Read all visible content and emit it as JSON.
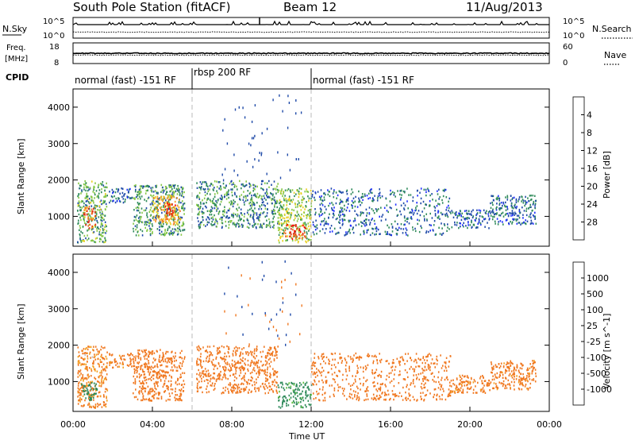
{
  "header": {
    "station": "South Pole Station (fitACF)",
    "beam": "Beam 12",
    "date": "11/Aug/2013"
  },
  "noise_panel": {
    "left_label": "N.Sky",
    "right_label": "N.Search",
    "left_ticks": [
      "10^5",
      "10^0"
    ],
    "right_ticks": [
      "10^5",
      "10^0"
    ]
  },
  "freq_panel": {
    "left_label_line1": "Freq.",
    "left_label_line2": "[MHz]",
    "right_label": "Nave",
    "left_ticks": [
      "18",
      "8"
    ],
    "right_ticks": [
      "60",
      "0"
    ]
  },
  "cpid": {
    "label": "CPID",
    "segments": [
      {
        "start_h": 0,
        "end_h": 6,
        "name": "normal (fast) -151 RF"
      },
      {
        "start_h": 6,
        "end_h": 12,
        "name": "rbsp 200 RF"
      },
      {
        "start_h": 12,
        "end_h": 24,
        "name": "normal (fast) -151 RF"
      }
    ]
  },
  "x_axis": {
    "label": "Time UT",
    "ticks": [
      "00:00",
      "04:00",
      "08:00",
      "12:00",
      "16:00",
      "20:00",
      "00:00"
    ],
    "range_hours": [
      0,
      24
    ]
  },
  "chart_data": [
    {
      "type": "heatmap",
      "ylabel": "Slant Range [km]",
      "ylim": [
        180,
        4500
      ],
      "yticks": [
        "1000",
        "2000",
        "3000",
        "4000"
      ],
      "colorbar": {
        "label": "Power [dB]",
        "range": [
          0,
          30
        ],
        "ticks": [
          "4",
          "8",
          "12",
          "16",
          "20",
          "24",
          "28"
        ],
        "colors": [
          "#2030ff",
          "#1f4aa8",
          "#2f8a5a",
          "#86c846",
          "#e8d020",
          "#f4a020",
          "#f07020",
          "#e02a18",
          "#ff0000"
        ]
      },
      "echo_regions": [
        {
          "t_start": 0.2,
          "t_end": 1.7,
          "r_min": 300,
          "r_max": 2000,
          "power": 10
        },
        {
          "t_start": 0.5,
          "t_end": 1.1,
          "r_min": 700,
          "r_max": 1300,
          "power": 22
        },
        {
          "t_start": 1.8,
          "t_end": 3.0,
          "r_min": 1400,
          "r_max": 1800,
          "power": 6
        },
        {
          "t_start": 3.0,
          "t_end": 5.6,
          "r_min": 500,
          "r_max": 1900,
          "power": 9
        },
        {
          "t_start": 4.0,
          "t_end": 5.4,
          "r_min": 800,
          "r_max": 1600,
          "power": 18
        },
        {
          "t_start": 4.6,
          "t_end": 5.2,
          "r_min": 1050,
          "r_max": 1400,
          "power": 26
        },
        {
          "t_start": 6.2,
          "t_end": 10.3,
          "r_min": 700,
          "r_max": 2000,
          "power": 8
        },
        {
          "t_start": 10.3,
          "t_end": 12.0,
          "r_min": 300,
          "r_max": 1800,
          "power": 12
        },
        {
          "t_start": 10.6,
          "t_end": 11.7,
          "r_min": 400,
          "r_max": 800,
          "power": 24
        },
        {
          "t_start": 12.0,
          "t_end": 19.0,
          "r_min": 500,
          "r_max": 1800,
          "power": 6
        },
        {
          "t_start": 19.0,
          "t_end": 21.0,
          "r_min": 700,
          "r_max": 1200,
          "power": 5
        },
        {
          "t_start": 21.0,
          "t_end": 23.3,
          "r_min": 800,
          "r_max": 1600,
          "power": 6
        }
      ]
    },
    {
      "type": "heatmap",
      "ylabel": "Slant Range [km]",
      "ylim": [
        180,
        4500
      ],
      "yticks": [
        "1000",
        "2000",
        "3000",
        "4000"
      ],
      "colorbar": {
        "label": "Velocity [m s^-1]",
        "range": [
          -1200,
          1200
        ],
        "ticks": [
          "1000",
          "500",
          "100",
          "25",
          "-25",
          "-100",
          "-500",
          "-1000"
        ],
        "colors": [
          "#ff0000",
          "#f04018",
          "#f07820",
          "#f4a020",
          "#f4c030",
          "#c0c0c0",
          "#60c040",
          "#2f8a5a",
          "#1f4aa8",
          "#2030e0"
        ]
      },
      "echo_regions": [
        {
          "t_start": 0.2,
          "t_end": 1.7,
          "r_min": 300,
          "r_max": 2000,
          "velocity": -150
        },
        {
          "t_start": 0.4,
          "t_end": 1.2,
          "r_min": 500,
          "r_max": 1000,
          "velocity": 300
        },
        {
          "t_start": 1.8,
          "t_end": 3.0,
          "r_min": 1400,
          "r_max": 1800,
          "velocity": -200
        },
        {
          "t_start": 3.0,
          "t_end": 5.6,
          "r_min": 500,
          "r_max": 1900,
          "velocity": -300
        },
        {
          "t_start": 6.2,
          "t_end": 10.3,
          "r_min": 700,
          "r_max": 2000,
          "velocity": -250
        },
        {
          "t_start": 10.3,
          "t_end": 12.0,
          "r_min": 300,
          "r_max": 1000,
          "velocity": 200
        },
        {
          "t_start": 12.0,
          "t_end": 19.0,
          "r_min": 500,
          "r_max": 1800,
          "velocity": -250
        },
        {
          "t_start": 19.0,
          "t_end": 21.0,
          "r_min": 700,
          "r_max": 1200,
          "velocity": -200
        },
        {
          "t_start": 21.0,
          "t_end": 23.3,
          "r_min": 800,
          "r_max": 1600,
          "velocity": -220
        }
      ]
    }
  ]
}
